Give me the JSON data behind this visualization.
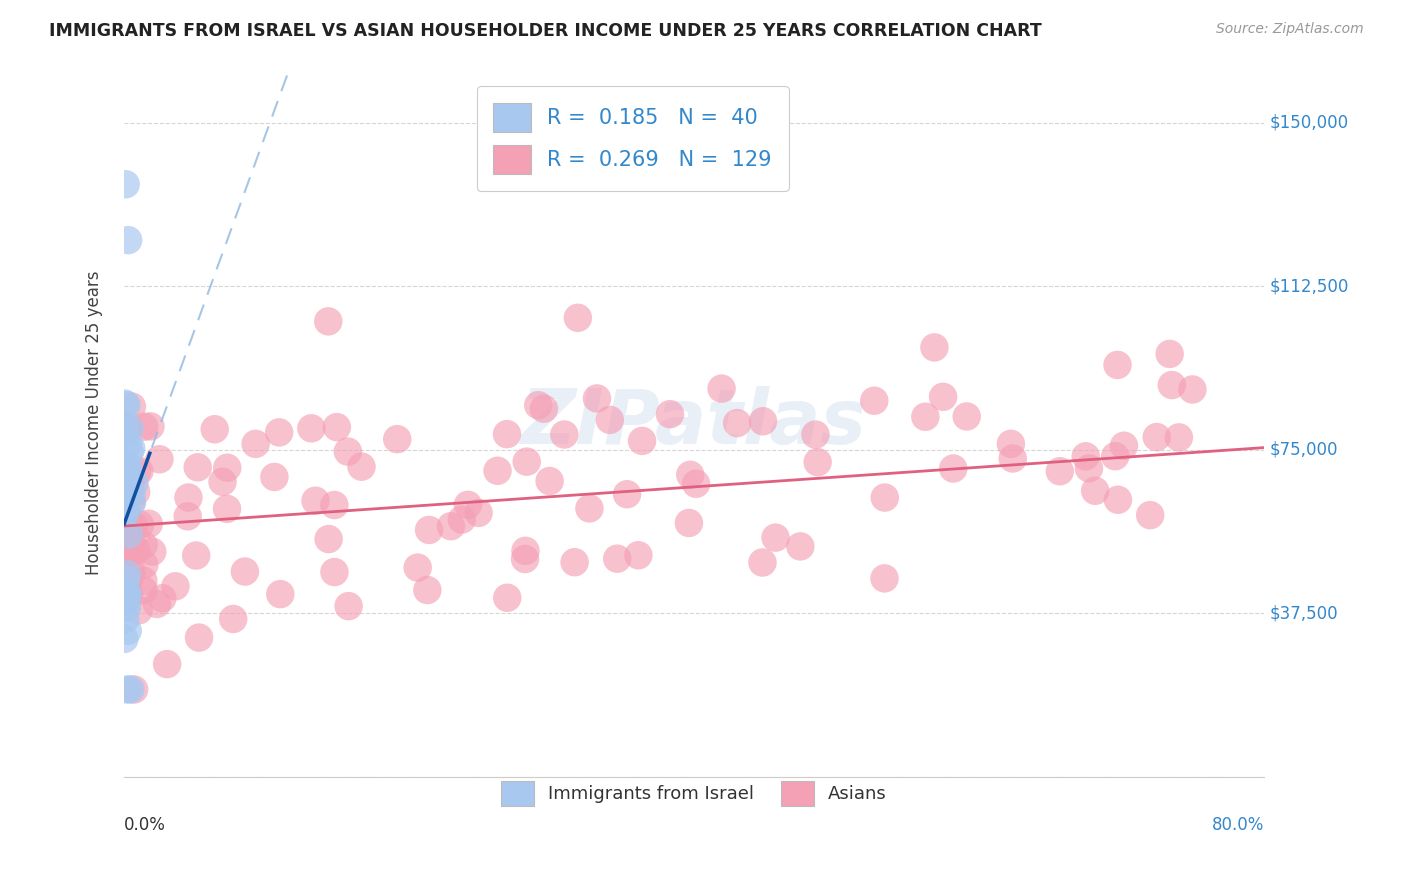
{
  "title": "IMMIGRANTS FROM ISRAEL VS ASIAN HOUSEHOLDER INCOME UNDER 25 YEARS CORRELATION CHART",
  "source": "Source: ZipAtlas.com",
  "ylabel": "Householder Income Under 25 years",
  "y_ticks": [
    0,
    37500,
    75000,
    112500,
    150000
  ],
  "y_tick_labels": [
    "",
    "$37,500",
    "$75,000",
    "$112,500",
    "$150,000"
  ],
  "legend_r1": "R =  0.185",
  "legend_n1": "N =  40",
  "legend_r2": "R =  0.269",
  "legend_n2": "N =  129",
  "blue_color": "#A8C8F0",
  "pink_color": "#F4A0B5",
  "trend_blue_solid_color": "#1050A0",
  "trend_blue_dash_color": "#90B8E0",
  "trend_pink_color": "#E06080",
  "legend_text_color": "#3388CC",
  "watermark": "ZIPatlas",
  "xmax": 80,
  "ymin": 0,
  "ymax": 162500,
  "israel_seed": 17,
  "asian_seed": 42,
  "blue_trend_intercept": 58000,
  "blue_trend_slope": 9000,
  "pink_trend_intercept": 57500,
  "pink_trend_slope": 225
}
